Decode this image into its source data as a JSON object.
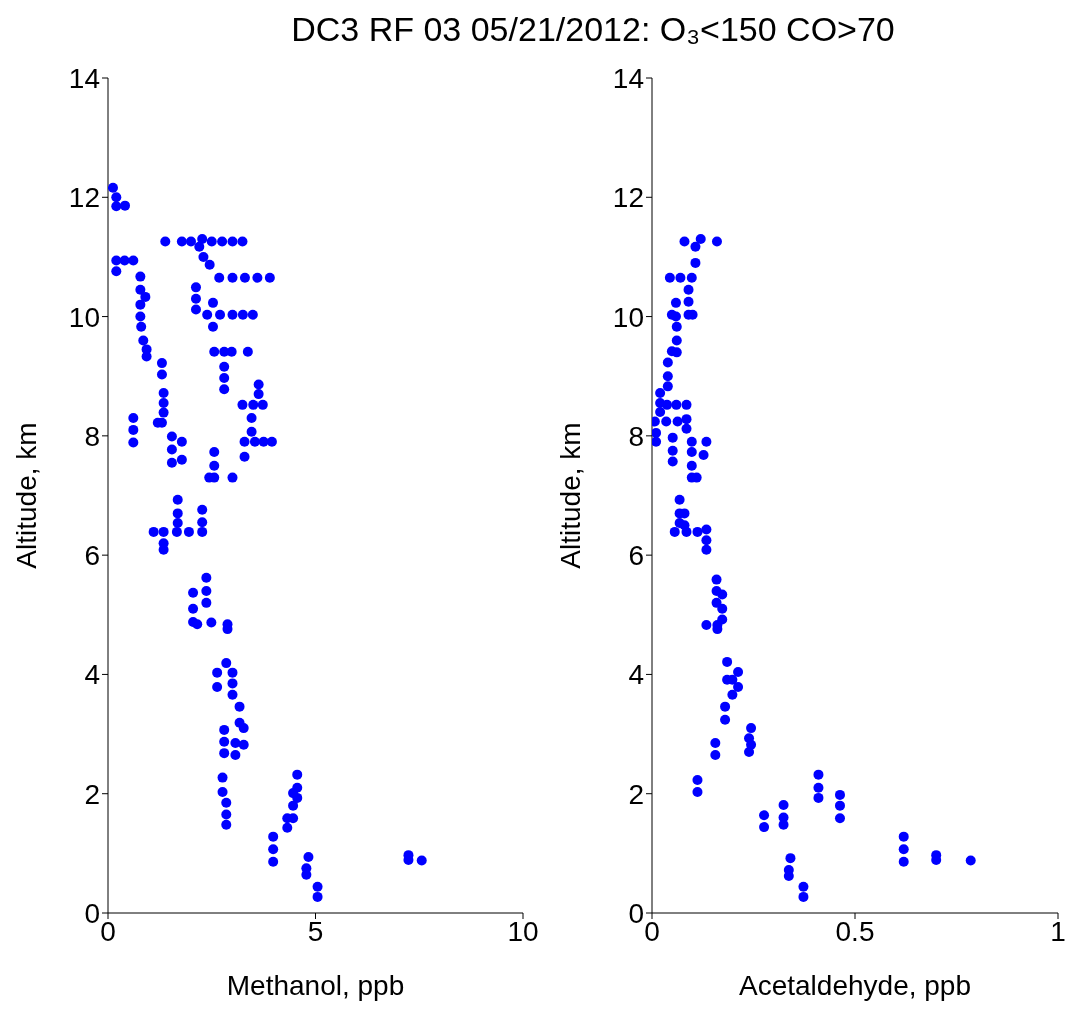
{
  "chart_data": [
    {
      "type": "scatter",
      "title": "DC3 RF 03 05/21/2012: O₃<150 CO>70",
      "xlabel": "Methanol, ppb",
      "ylabel": "Altitude, km",
      "color": "#0000ff",
      "marker": "circle",
      "grid": false,
      "legend": false,
      "xlim": [
        0,
        10
      ],
      "xticks": [
        0,
        5,
        10
      ],
      "ylim": [
        0,
        14
      ],
      "yticks": [
        0,
        2,
        4,
        6,
        8,
        10,
        12,
        14
      ],
      "x": [
        0.12,
        0.2,
        0.2,
        0.41,
        1.38,
        1.78,
        2.0,
        2.27,
        2.5,
        2.75,
        3.0,
        3.24,
        2.2,
        2.3,
        2.45,
        0.2,
        0.4,
        0.61,
        0.2,
        2.68,
        3.0,
        3.3,
        3.6,
        3.9,
        0.78,
        0.78,
        0.9,
        0.78,
        0.78,
        2.12,
        2.12,
        2.12,
        2.39,
        2.7,
        3.0,
        3.25,
        3.49,
        2.53,
        2.53,
        0.8,
        0.85,
        0.93,
        0.93,
        2.56,
        2.8,
        2.98,
        3.37,
        2.8,
        2.8,
        2.8,
        1.3,
        1.3,
        1.34,
        1.34,
        1.34,
        3.24,
        3.5,
        3.73,
        3.63,
        3.63,
        1.3,
        1.2,
        0.61,
        0.61,
        0.61,
        3.46,
        3.46,
        3.54,
        3.75,
        3.95,
        1.54,
        1.54,
        1.54,
        1.78,
        1.78,
        3.29,
        3.29,
        2.56,
        2.56,
        2.56,
        2.44,
        3.0,
        1.68,
        1.68,
        1.68,
        1.1,
        1.34,
        1.34,
        1.34,
        1.66,
        1.95,
        2.27,
        2.27,
        2.27,
        2.37,
        2.37,
        2.37,
        2.05,
        2.05,
        2.05,
        2.15,
        2.49,
        2.88,
        2.88,
        2.85,
        2.63,
        2.63,
        3.0,
        3.0,
        3.0,
        3.17,
        3.17,
        3.27,
        3.27,
        2.8,
        2.8,
        2.8,
        3.07,
        3.07,
        2.76,
        2.76,
        2.85,
        2.85,
        2.85,
        4.56,
        4.56,
        4.56,
        4.46,
        4.46,
        4.46,
        4.32,
        4.32,
        3.98,
        3.98,
        3.98,
        4.83,
        4.78,
        4.78,
        5.05,
        5.05,
        7.24,
        7.24,
        7.56
      ],
      "values": [
        12.16,
        12.0,
        11.85,
        11.86,
        11.26,
        11.26,
        11.26,
        11.3,
        11.26,
        11.26,
        11.26,
        11.26,
        11.17,
        11.0,
        10.87,
        10.94,
        10.94,
        10.94,
        10.76,
        10.65,
        10.65,
        10.65,
        10.65,
        10.65,
        10.67,
        10.45,
        10.33,
        10.2,
        10.0,
        10.49,
        10.3,
        10.12,
        10.03,
        10.03,
        10.03,
        10.03,
        10.03,
        10.23,
        9.83,
        9.83,
        9.6,
        9.45,
        9.33,
        9.41,
        9.41,
        9.41,
        9.41,
        9.16,
        8.97,
        8.78,
        9.22,
        9.03,
        8.72,
        8.55,
        8.39,
        8.52,
        8.52,
        8.52,
        8.86,
        8.7,
        8.22,
        8.22,
        8.3,
        8.1,
        7.89,
        8.3,
        8.07,
        7.9,
        7.9,
        7.9,
        7.99,
        7.77,
        7.55,
        7.9,
        7.6,
        7.9,
        7.65,
        7.73,
        7.5,
        7.3,
        7.3,
        7.3,
        6.93,
        6.7,
        6.54,
        6.39,
        6.39,
        6.2,
        6.09,
        6.39,
        6.39,
        6.76,
        6.55,
        6.39,
        5.62,
        5.4,
        5.2,
        5.37,
        5.1,
        4.88,
        4.84,
        4.87,
        4.84,
        4.76,
        4.19,
        4.03,
        3.79,
        4.03,
        3.85,
        3.66,
        3.46,
        3.19,
        3.1,
        2.82,
        3.07,
        2.87,
        2.68,
        2.85,
        2.65,
        2.27,
        2.03,
        1.85,
        1.65,
        1.48,
        2.32,
        2.1,
        1.93,
        2.01,
        1.8,
        1.59,
        1.59,
        1.43,
        1.28,
        1.07,
        0.86,
        0.94,
        0.75,
        0.64,
        0.44,
        0.27,
        0.97,
        0.89,
        0.88
      ]
    },
    {
      "type": "scatter",
      "xlabel": "Acetaldehyde, ppb",
      "ylabel": "Altitude, km",
      "color": "#0000ff",
      "marker": "circle",
      "grid": false,
      "legend": false,
      "xlim": [
        0,
        1
      ],
      "xticks": [
        0,
        0.5,
        1
      ],
      "ylim": [
        0,
        14
      ],
      "yticks": [
        0,
        2,
        4,
        6,
        8,
        10,
        12,
        14
      ],
      "x": [
        0.08,
        0.12,
        0.16,
        0.107,
        0.107,
        0.044,
        0.07,
        0.098,
        0.09,
        0.09,
        0.09,
        0.1,
        0.059,
        0.059,
        0.049,
        0.061,
        0.061,
        0.061,
        0.049,
        0.039,
        0.039,
        0.039,
        0.02,
        0.02,
        0.02,
        0.037,
        0.06,
        0.085,
        0.007,
        0.035,
        0.063,
        0.01,
        0.01,
        0.085,
        0.085,
        0.051,
        0.051,
        0.051,
        0.098,
        0.134,
        0.127,
        0.098,
        0.098,
        0.098,
        0.11,
        0.068,
        0.068,
        0.068,
        0.08,
        0.08,
        0.056,
        0.085,
        0.112,
        0.134,
        0.134,
        0.134,
        0.159,
        0.159,
        0.159,
        0.173,
        0.173,
        0.173,
        0.134,
        0.161,
        0.161,
        0.185,
        0.185,
        0.212,
        0.212,
        0.198,
        0.198,
        0.18,
        0.18,
        0.244,
        0.244,
        0.239,
        0.239,
        0.156,
        0.156,
        0.112,
        0.112,
        0.276,
        0.276,
        0.324,
        0.324,
        0.324,
        0.41,
        0.41,
        0.41,
        0.463,
        0.463,
        0.463,
        0.341,
        0.337,
        0.337,
        0.373,
        0.373,
        0.62,
        0.62,
        0.62,
        0.7,
        0.7,
        0.785
      ],
      "values": [
        11.26,
        11.3,
        11.26,
        11.17,
        10.9,
        10.65,
        10.65,
        10.65,
        10.45,
        10.25,
        10.03,
        10.03,
        10.23,
        10.0,
        10.03,
        9.83,
        9.6,
        9.4,
        9.42,
        9.23,
        9.0,
        8.83,
        8.72,
        8.55,
        8.4,
        8.52,
        8.52,
        8.52,
        8.24,
        8.24,
        8.24,
        8.05,
        7.9,
        8.28,
        8.12,
        7.97,
        7.75,
        7.57,
        7.9,
        7.9,
        7.68,
        7.73,
        7.5,
        7.3,
        7.3,
        6.93,
        6.7,
        6.54,
        6.7,
        6.5,
        6.39,
        6.39,
        6.39,
        6.43,
        6.25,
        6.09,
        5.59,
        5.4,
        5.2,
        5.34,
        5.1,
        4.92,
        4.83,
        4.83,
        4.76,
        4.21,
        3.91,
        4.04,
        3.79,
        3.91,
        3.66,
        3.46,
        3.24,
        3.1,
        2.82,
        2.93,
        2.7,
        2.85,
        2.65,
        2.23,
        2.03,
        1.64,
        1.44,
        1.81,
        1.6,
        1.48,
        2.32,
        2.1,
        1.93,
        1.98,
        1.8,
        1.59,
        0.92,
        0.72,
        0.62,
        0.44,
        0.27,
        1.28,
        1.07,
        0.86,
        0.97,
        0.89,
        0.88
      ]
    }
  ]
}
